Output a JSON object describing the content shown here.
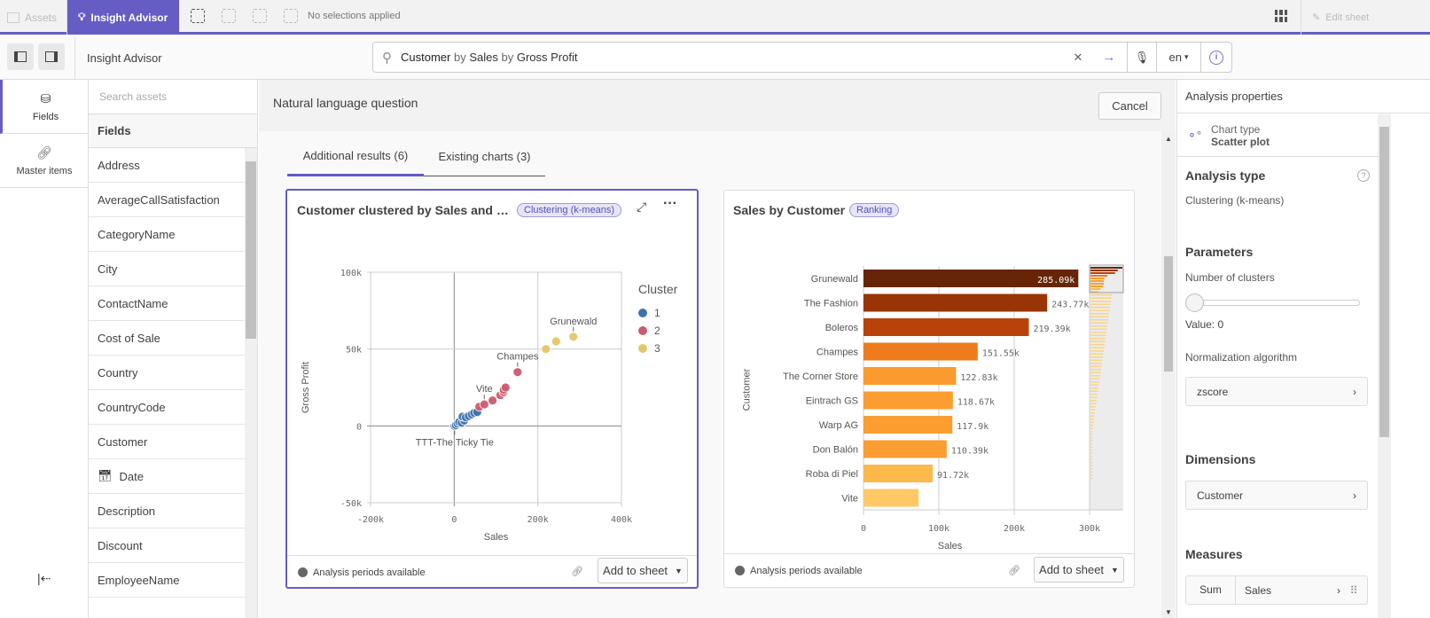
{
  "topbar": {
    "assets": "Assets",
    "insight_advisor": "Insight Advisor",
    "selections": "No selections applied",
    "edit_sheet": "Edit sheet"
  },
  "header": {
    "title": "Insight Advisor",
    "search_value_parts": [
      "Customer",
      " by ",
      "Sales",
      " by ",
      "Gross Profit"
    ],
    "language": "en"
  },
  "rail": {
    "fields": "Fields",
    "master_items": "Master items"
  },
  "fields_panel": {
    "search_placeholder": "Search assets",
    "header": "Fields",
    "items": [
      "Address",
      "AverageCallSatisfaction",
      "CategoryName",
      "City",
      "ContactName",
      "Cost of Sale",
      "Country",
      "CountryCode",
      "Customer",
      "Date",
      "Description",
      "Discount",
      "EmployeeName"
    ]
  },
  "main": {
    "title": "Natural language question",
    "cancel": "Cancel",
    "tabs": [
      {
        "label": "Additional results (6)",
        "active": true
      },
      {
        "label": "Existing charts (3)",
        "active": false
      }
    ]
  },
  "cards": [
    {
      "title": "Customer clustered by Sales and …",
      "badge": "Clustering (k-means)",
      "footer": "Analysis periods available",
      "add": "Add to sheet",
      "selected": true
    },
    {
      "title": "Sales by Customer",
      "badge": "Ranking",
      "footer": "Analysis periods available",
      "add": "Add to sheet",
      "selected": false
    }
  ],
  "chart_data": [
    {
      "type": "scatter",
      "xlabel": "Sales",
      "ylabel": "Gross Profit",
      "xlim": [
        -200000,
        400000
      ],
      "ylim": [
        -50000,
        100000
      ],
      "xticks": [
        "-200k",
        "0",
        "200k",
        "400k"
      ],
      "yticks": [
        "100k",
        "50k",
        "0",
        "-50k"
      ],
      "grid": true,
      "legend": {
        "title": "Cluster",
        "placement": "right",
        "entries": [
          "1",
          "2",
          "3"
        ]
      },
      "colors": {
        "1": "#3f72ad",
        "2": "#cf5a6e",
        "3": "#e3c767"
      },
      "points": [
        {
          "x": 285090,
          "y": 58000,
          "c": "3",
          "label": "Grunewald"
        },
        {
          "x": 243770,
          "y": 55000,
          "c": "3"
        },
        {
          "x": 219390,
          "y": 50000,
          "c": "3"
        },
        {
          "x": 151550,
          "y": 35000,
          "c": "2",
          "label": "Champes"
        },
        {
          "x": 122830,
          "y": 25000,
          "c": "2"
        },
        {
          "x": 118670,
          "y": 23500,
          "c": "2"
        },
        {
          "x": 117900,
          "y": 22000,
          "c": "2"
        },
        {
          "x": 110390,
          "y": 20000,
          "c": "2"
        },
        {
          "x": 91720,
          "y": 16500,
          "c": "2"
        },
        {
          "x": 72000,
          "y": 14000,
          "c": "2",
          "label": "Vite"
        },
        {
          "x": 60000,
          "y": 12500,
          "c": "2"
        },
        {
          "x": 55000,
          "y": 9000,
          "c": "1"
        },
        {
          "x": 48000,
          "y": 8500,
          "c": "1"
        },
        {
          "x": 42000,
          "y": 7500,
          "c": "1"
        },
        {
          "x": 35000,
          "y": 6500,
          "c": "1"
        },
        {
          "x": 28000,
          "y": 5500,
          "c": "1"
        },
        {
          "x": 20000,
          "y": 6000,
          "c": "1"
        },
        {
          "x": 24000,
          "y": 3500,
          "c": "1"
        },
        {
          "x": 18000,
          "y": 2000,
          "c": "1"
        },
        {
          "x": 12000,
          "y": 2500,
          "c": "1"
        },
        {
          "x": 8000,
          "y": 1500,
          "c": "1"
        },
        {
          "x": 4000,
          "y": 500,
          "c": "1"
        },
        {
          "x": 1000,
          "y": 0,
          "c": "1",
          "label": "TTT-The Ticky Tie"
        }
      ]
    },
    {
      "type": "bar",
      "orientation": "horizontal",
      "xlabel": "Sales",
      "ylabel": "Customer",
      "xlim": [
        0,
        300000
      ],
      "xticks": [
        "0",
        "100k",
        "200k",
        "300k"
      ],
      "categories": [
        "Grunewald",
        "The Fashion",
        "Boleros",
        "Champes",
        "The Corner Store",
        "Eintrach GS",
        "Warp AG",
        "Don Balón",
        "Roba di Piel",
        "Vite"
      ],
      "values": [
        285090,
        243770,
        219390,
        151550,
        122830,
        118670,
        117900,
        110390,
        91720,
        73000
      ],
      "labels": [
        "285.09k",
        "243.77k",
        "219.39k",
        "151.55k",
        "122.83k",
        "118.67k",
        "117.9k",
        "110.39k",
        "91.72k",
        ""
      ],
      "colors": [
        "#662506",
        "#993404",
        "#b9420b",
        "#ee7b1e",
        "#fb9b2f",
        "#fb9d30",
        "#fb9d30",
        "#fb9d30",
        "#fdb94a",
        "#fec964"
      ]
    }
  ],
  "properties": {
    "header": "Analysis properties",
    "chart_type_label": "Chart type",
    "chart_type": "Scatter plot",
    "analysis_type_title": "Analysis type",
    "analysis_type": "Clustering (k-means)",
    "parameters": "Parameters",
    "clusters_label": "Number of clusters",
    "clusters_value": 0,
    "value_text": "Value: 0",
    "normalization_label": "Normalization algorithm",
    "normalization": "zscore",
    "dimensions": "Dimensions",
    "dimension": "Customer",
    "measures": "Measures",
    "measure_agg": "Sum",
    "measure": "Sales"
  }
}
